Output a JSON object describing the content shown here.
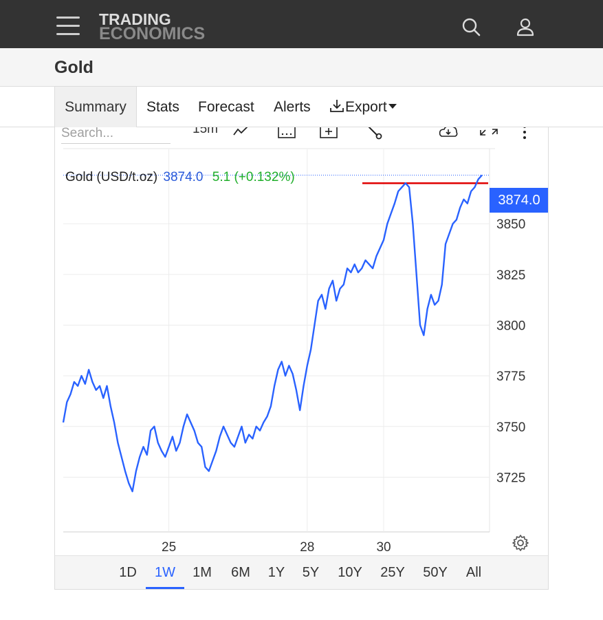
{
  "header": {
    "logo_line1": "TRADING",
    "logo_line2": "ECONOMICS",
    "menu_icon": "hamburger-menu-icon",
    "search_icon": "search-icon",
    "user_icon": "user-icon"
  },
  "page": {
    "title": "Gold"
  },
  "tabs": [
    {
      "label": "Summary",
      "active": true
    },
    {
      "label": "Stats"
    },
    {
      "label": "Forecast"
    },
    {
      "label": "Alerts"
    },
    {
      "label": "Export",
      "icon": "download-icon"
    }
  ],
  "toolbar": {
    "search_placeholder": "Search...",
    "interval": "15m",
    "icons": [
      "chart-type-icon",
      "calendar-icon",
      "add-compare-icon",
      "drawing-tool-icon",
      "download-icon",
      "fullscreen-icon",
      "more-vertical-icon"
    ]
  },
  "legend": {
    "name": "Gold (USD/t.oz)",
    "price": "3874.0",
    "change": "5.1 (+0.132%)"
  },
  "price_badge": "3874.0",
  "settings_icon": "gear-icon",
  "periods": [
    {
      "label": "1D"
    },
    {
      "label": "1W",
      "active": true
    },
    {
      "label": "1M"
    },
    {
      "label": "6M"
    },
    {
      "label": "1Y"
    },
    {
      "label": "5Y"
    },
    {
      "label": "10Y"
    },
    {
      "label": "25Y"
    },
    {
      "label": "50Y"
    },
    {
      "label": "All"
    }
  ],
  "colors": {
    "line": "#2962ff",
    "reference_line": "#e00000",
    "badge": "#2962ff",
    "change_positive": "#1fae2a"
  },
  "chart_data": {
    "type": "line",
    "title": "Gold (USD/t.oz)",
    "xlabel": "",
    "ylabel": "",
    "x_ticks": [
      "25",
      "28",
      "30"
    ],
    "y_ticks": [
      3725,
      3750,
      3775,
      3800,
      3825,
      3850
    ],
    "ylim": [
      3698,
      3884
    ],
    "grid": true,
    "last_price": 3874.0,
    "reference_level": 3870,
    "series": [
      {
        "values": [
          3752,
          3762,
          3766,
          3772,
          3770,
          3775,
          3771,
          3778,
          3772,
          3768,
          3770,
          3764,
          3770,
          3760,
          3752,
          3742,
          3735,
          3728,
          3722,
          3718,
          3728,
          3735,
          3740,
          3736,
          3748,
          3750,
          3742,
          3738,
          3735,
          3740,
          3745,
          3738,
          3742,
          3750,
          3756,
          3752,
          3748,
          3742,
          3740,
          3730,
          3728,
          3733,
          3738,
          3745,
          3750,
          3746,
          3742,
          3740,
          3745,
          3750,
          3742,
          3746,
          3744,
          3750,
          3748,
          3752,
          3755,
          3760,
          3770,
          3778,
          3782,
          3775,
          3780,
          3776,
          3768,
          3758,
          3770,
          3780,
          3788,
          3800,
          3812,
          3815,
          3808,
          3818,
          3822,
          3812,
          3818,
          3820,
          3828,
          3826,
          3830,
          3826,
          3828,
          3832,
          3830,
          3828,
          3834,
          3838,
          3842,
          3850,
          3855,
          3860,
          3866,
          3868,
          3870,
          3868,
          3850,
          3825,
          3800,
          3795,
          3808,
          3815,
          3810,
          3812,
          3820,
          3840,
          3845,
          3850,
          3852,
          3858,
          3862,
          3860,
          3866,
          3868,
          3872,
          3874
        ]
      }
    ]
  }
}
